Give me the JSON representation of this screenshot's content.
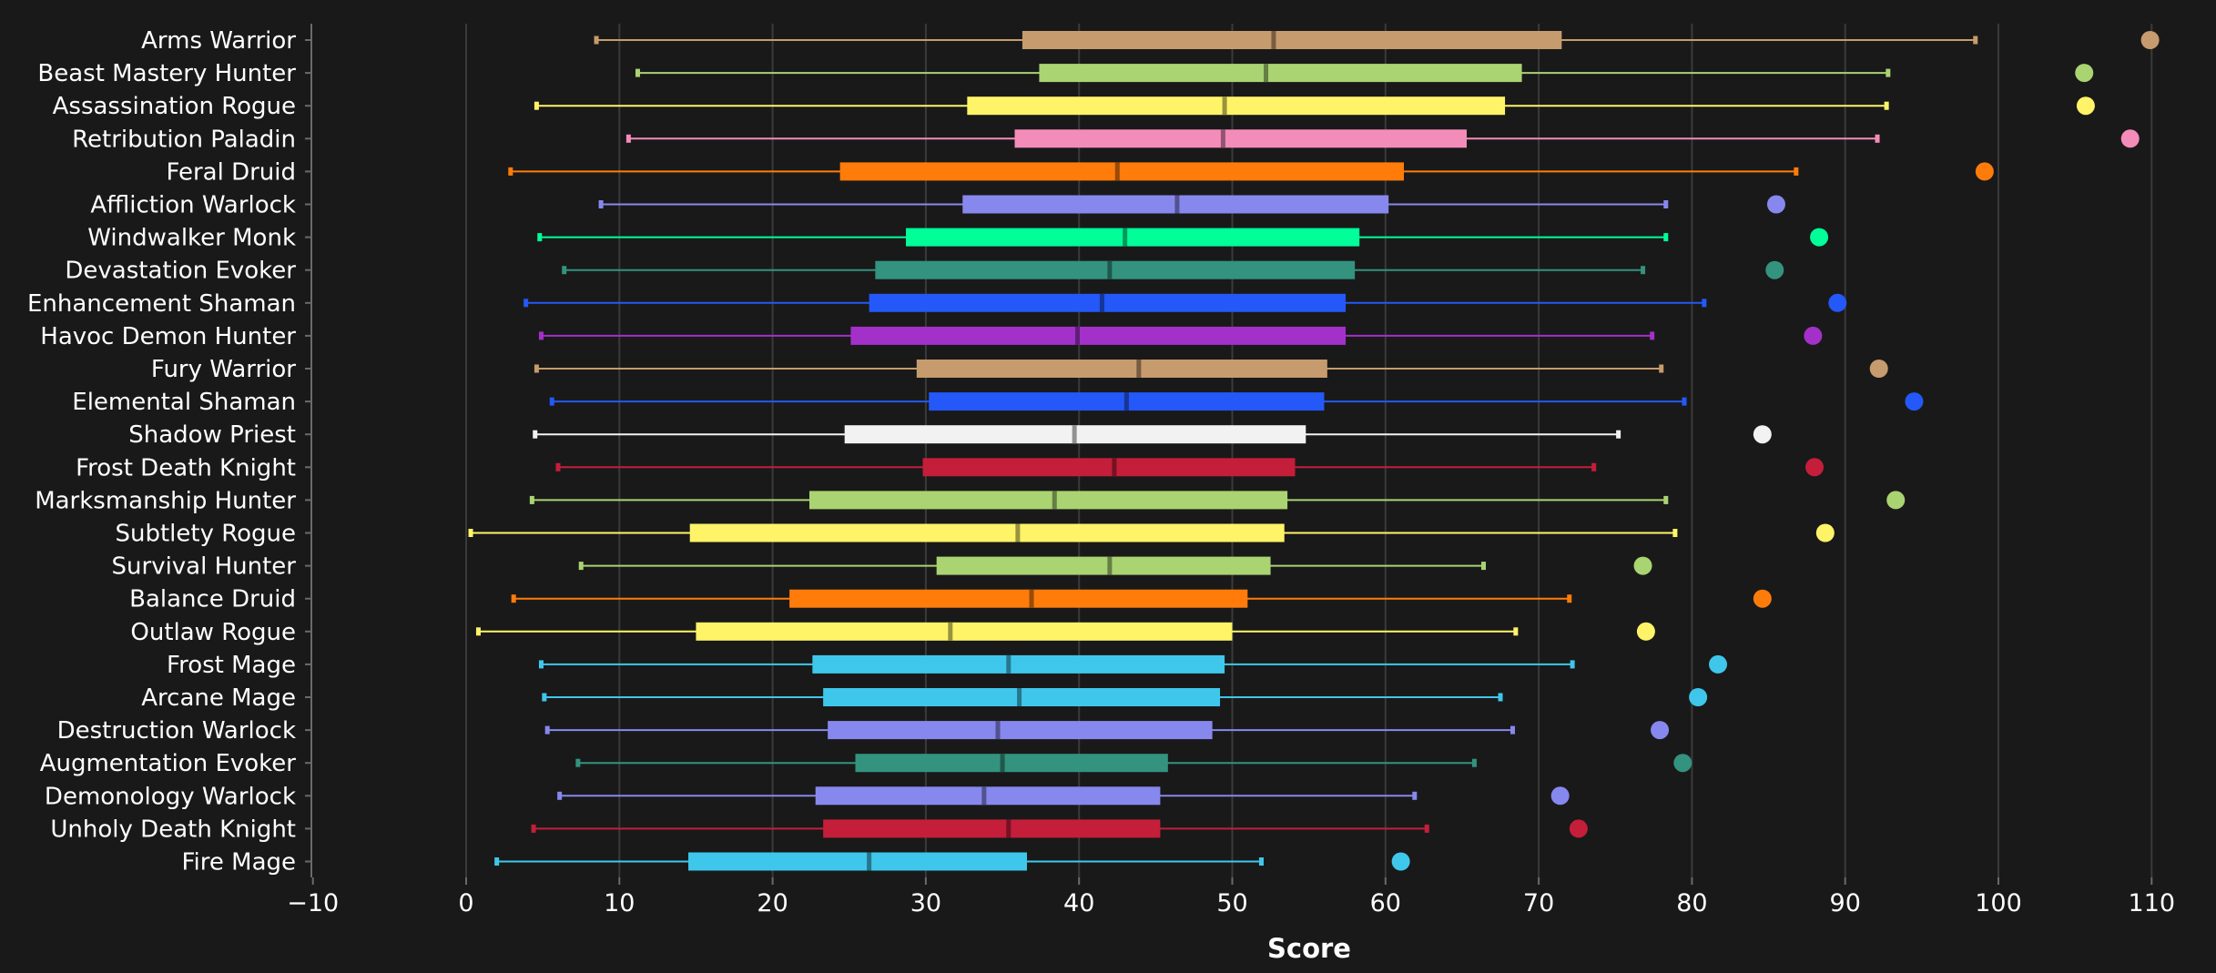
{
  "chart_data": {
    "type": "boxplot",
    "orientation": "horizontal",
    "title": "",
    "xlabel": "Score",
    "ylabel": "",
    "xlim": [
      -10,
      114
    ],
    "xticks": [
      -10,
      0,
      10,
      20,
      30,
      40,
      50,
      60,
      70,
      80,
      90,
      100,
      110
    ],
    "xtick_labels": [
      "−10",
      "0",
      "10",
      "20",
      "30",
      "40",
      "50",
      "60",
      "70",
      "80",
      "90",
      "100",
      "110"
    ],
    "grid": "vertical",
    "legend": "none",
    "series": [
      {
        "name": "Arms Warrior",
        "color": "#C69B6D",
        "min": 8.5,
        "q1": 36.3,
        "median": 52.7,
        "q3": 71.5,
        "max": 98.5,
        "outlier": 109.9
      },
      {
        "name": "Beast Mastery Hunter",
        "color": "#AAD372",
        "min": 11.2,
        "q1": 37.4,
        "median": 52.2,
        "q3": 68.9,
        "max": 92.8,
        "outlier": 105.6
      },
      {
        "name": "Assassination Rogue",
        "color": "#FFF468",
        "min": 4.6,
        "q1": 32.7,
        "median": 49.5,
        "q3": 67.8,
        "max": 92.7,
        "outlier": 105.7
      },
      {
        "name": "Retribution Paladin",
        "color": "#F48CBA",
        "min": 10.6,
        "q1": 35.8,
        "median": 49.4,
        "q3": 65.3,
        "max": 92.1,
        "outlier": 108.6
      },
      {
        "name": "Feral Druid",
        "color": "#FF7C0A",
        "min": 2.9,
        "q1": 24.4,
        "median": 42.5,
        "q3": 61.2,
        "max": 86.8,
        "outlier": 99.1
      },
      {
        "name": "Affliction Warlock",
        "color": "#8788EE",
        "min": 8.8,
        "q1": 32.4,
        "median": 46.4,
        "q3": 60.2,
        "max": 78.3,
        "outlier": 85.5
      },
      {
        "name": "Windwalker Monk",
        "color": "#00FF98",
        "min": 4.8,
        "q1": 28.7,
        "median": 43.0,
        "q3": 58.3,
        "max": 78.3,
        "outlier": 88.3
      },
      {
        "name": "Devastation Evoker",
        "color": "#33937F",
        "min": 6.4,
        "q1": 26.7,
        "median": 42.0,
        "q3": 58.0,
        "max": 76.8,
        "outlier": 85.4
      },
      {
        "name": "Enhancement Shaman",
        "color": "#2458F8",
        "min": 3.9,
        "q1": 26.3,
        "median": 41.5,
        "q3": 57.4,
        "max": 80.8,
        "outlier": 89.5
      },
      {
        "name": "Havoc Demon Hunter",
        "color": "#A330C9",
        "min": 4.9,
        "q1": 25.1,
        "median": 39.9,
        "q3": 57.4,
        "max": 77.4,
        "outlier": 87.9
      },
      {
        "name": "Fury Warrior",
        "color": "#C69B6D",
        "min": 4.6,
        "q1": 29.4,
        "median": 43.9,
        "q3": 56.2,
        "max": 78.0,
        "outlier": 92.2
      },
      {
        "name": "Elemental Shaman",
        "color": "#2458F8",
        "min": 5.6,
        "q1": 30.2,
        "median": 43.1,
        "q3": 56.0,
        "max": 79.5,
        "outlier": 94.5
      },
      {
        "name": "Shadow Priest",
        "color": "#F2F2F2",
        "min": 4.5,
        "q1": 24.7,
        "median": 39.7,
        "q3": 54.8,
        "max": 75.2,
        "outlier": 84.6
      },
      {
        "name": "Frost Death Knight",
        "color": "#C41E3A",
        "min": 6.0,
        "q1": 29.8,
        "median": 42.3,
        "q3": 54.1,
        "max": 73.6,
        "outlier": 88.0
      },
      {
        "name": "Marksmanship Hunter",
        "color": "#AAD372",
        "min": 4.3,
        "q1": 22.4,
        "median": 38.4,
        "q3": 53.6,
        "max": 78.3,
        "outlier": 93.3
      },
      {
        "name": "Subtlety Rogue",
        "color": "#FFF468",
        "min": 0.3,
        "q1": 14.6,
        "median": 36.0,
        "q3": 53.4,
        "max": 78.9,
        "outlier": 88.7
      },
      {
        "name": "Survival Hunter",
        "color": "#AAD372",
        "min": 7.5,
        "q1": 30.7,
        "median": 42.0,
        "q3": 52.5,
        "max": 66.4,
        "outlier": 76.8
      },
      {
        "name": "Balance Druid",
        "color": "#FF7C0A",
        "min": 3.1,
        "q1": 21.1,
        "median": 36.9,
        "q3": 51.0,
        "max": 72.0,
        "outlier": 84.6
      },
      {
        "name": "Outlaw Rogue",
        "color": "#FFF468",
        "min": 0.8,
        "q1": 15.0,
        "median": 31.6,
        "q3": 50.0,
        "max": 68.5,
        "outlier": 77.0
      },
      {
        "name": "Frost Mage",
        "color": "#3FC7EB",
        "min": 4.9,
        "q1": 22.6,
        "median": 35.4,
        "q3": 49.5,
        "max": 72.2,
        "outlier": 81.7
      },
      {
        "name": "Arcane Mage",
        "color": "#3FC7EB",
        "min": 5.1,
        "q1": 23.3,
        "median": 36.1,
        "q3": 49.2,
        "max": 67.5,
        "outlier": 80.4
      },
      {
        "name": "Destruction Warlock",
        "color": "#8788EE",
        "min": 5.3,
        "q1": 23.6,
        "median": 34.7,
        "q3": 48.7,
        "max": 68.3,
        "outlier": 77.9
      },
      {
        "name": "Augmentation Evoker",
        "color": "#33937F",
        "min": 7.3,
        "q1": 25.4,
        "median": 35.0,
        "q3": 45.8,
        "max": 65.8,
        "outlier": 79.4
      },
      {
        "name": "Demonology Warlock",
        "color": "#8788EE",
        "min": 6.1,
        "q1": 22.8,
        "median": 33.8,
        "q3": 45.3,
        "max": 61.9,
        "outlier": 71.4
      },
      {
        "name": "Unholy Death Knight",
        "color": "#C41E3A",
        "min": 4.4,
        "q1": 23.3,
        "median": 35.4,
        "q3": 45.3,
        "max": 62.7,
        "outlier": 72.6
      },
      {
        "name": "Fire Mage",
        "color": "#3FC7EB",
        "min": 2.0,
        "q1": 14.5,
        "median": 26.3,
        "q3": 36.6,
        "max": 51.9,
        "outlier": 61.0
      }
    ]
  }
}
